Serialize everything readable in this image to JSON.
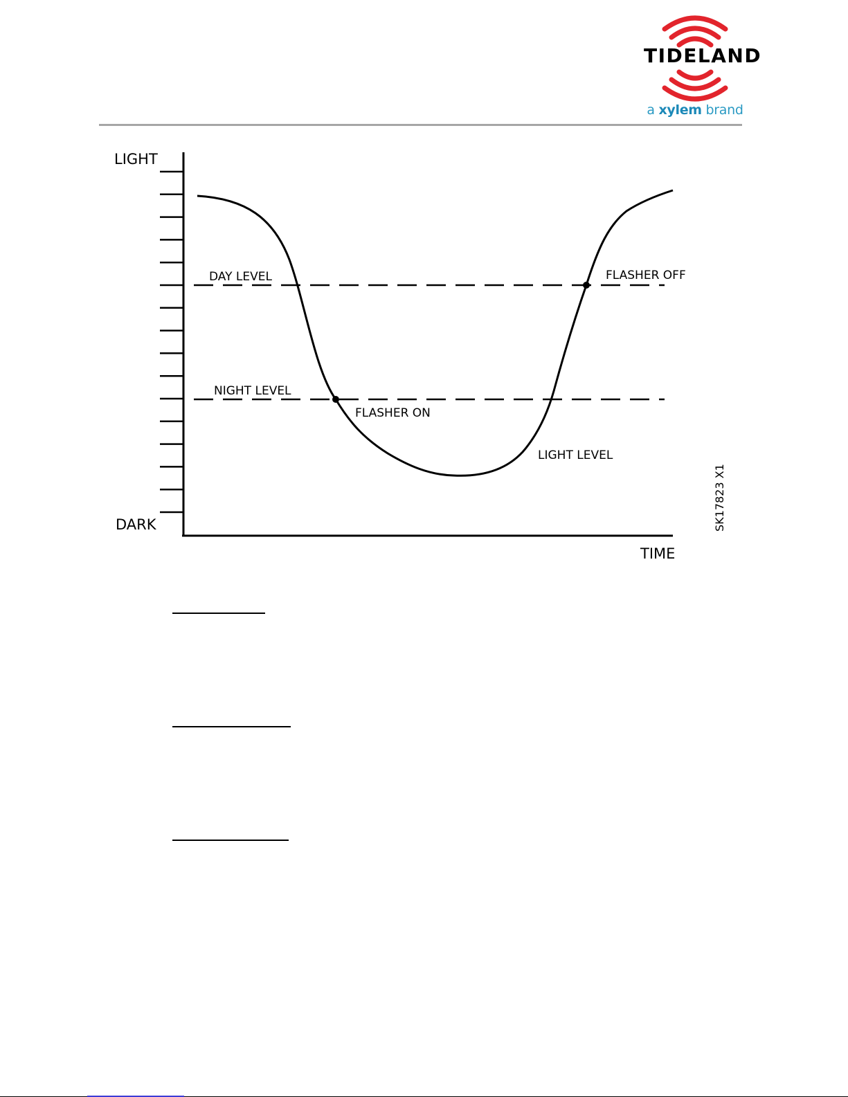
{
  "header": {
    "logo_text": "TIDELAND",
    "brand_prefix": "a ",
    "brand_name": "xylem",
    "brand_suffix": " brand",
    "colors": {
      "arcs": "#e2242c",
      "brand_text": "#2a9ac3",
      "rule": "#a6a6a6"
    }
  },
  "diagram": {
    "y_top_label": "LIGHT",
    "y_bottom_label": "DARK",
    "x_label": "TIME",
    "day_level_label": "DAY LEVEL",
    "night_level_label": "NIGHT LEVEL",
    "flasher_on_label": "FLASHER ON",
    "flasher_off_label": "FLASHER OFF",
    "light_level_label": "LIGHT LEVEL",
    "drawing_id": "SK17823 X1"
  }
}
